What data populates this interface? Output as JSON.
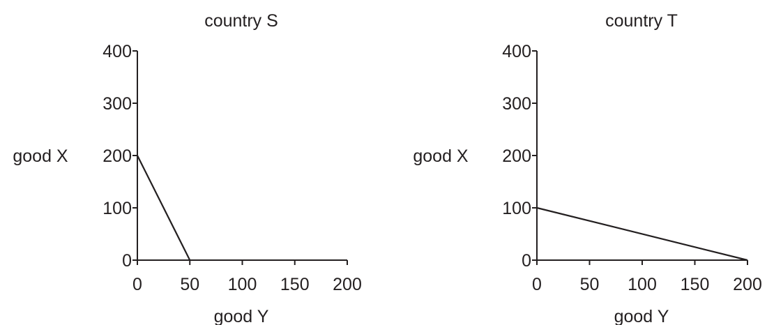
{
  "chart_data": [
    {
      "type": "line",
      "title": "country S",
      "xlabel": "good Y",
      "ylabel": "good X",
      "xlim": [
        0,
        200
      ],
      "ylim": [
        0,
        400
      ],
      "x_ticks": [
        0,
        50,
        100,
        150,
        200
      ],
      "y_ticks": [
        0,
        100,
        200,
        300,
        400
      ],
      "grid": false,
      "series": [
        {
          "x": [
            0,
            50
          ],
          "y": [
            200,
            0
          ]
        }
      ]
    },
    {
      "type": "line",
      "title": "country T",
      "xlabel": "good Y",
      "ylabel": "good X",
      "xlim": [
        0,
        200
      ],
      "ylim": [
        0,
        400
      ],
      "x_ticks": [
        0,
        50,
        100,
        150,
        200
      ],
      "y_ticks": [
        0,
        100,
        200,
        300,
        400
      ],
      "grid": false,
      "series": [
        {
          "x": [
            0,
            200
          ],
          "y": [
            100,
            0
          ]
        }
      ]
    }
  ]
}
